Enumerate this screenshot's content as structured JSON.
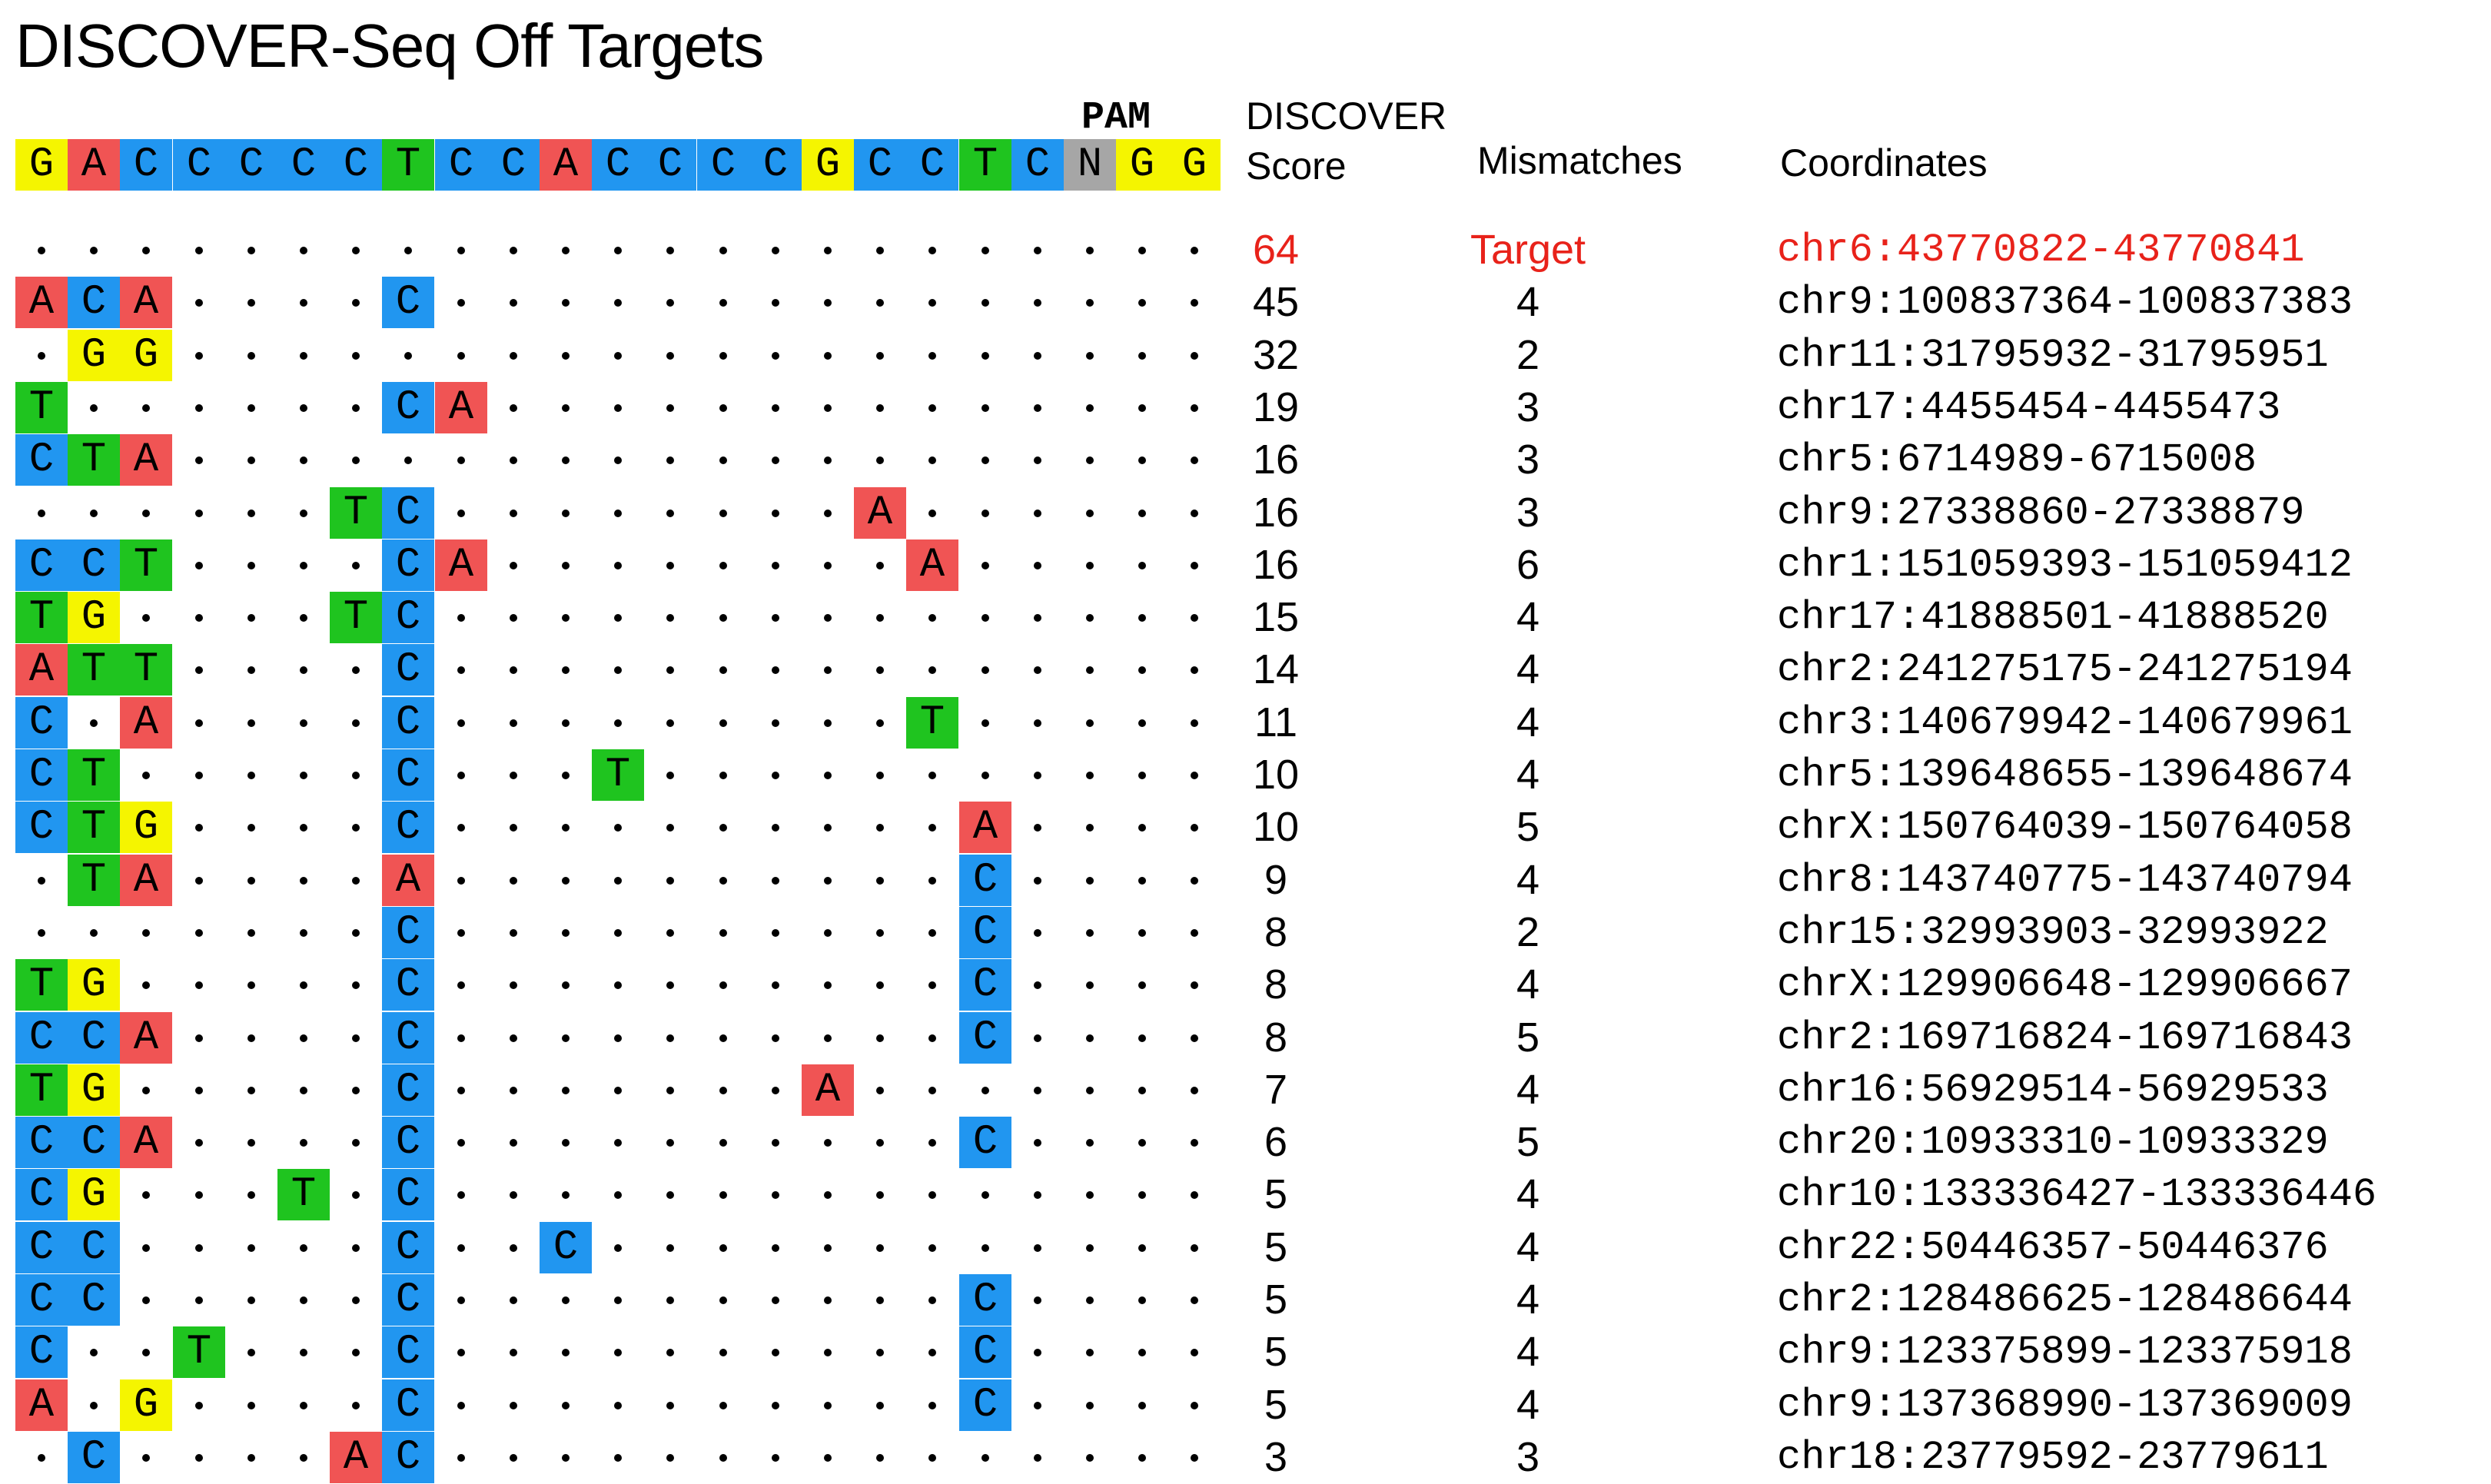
{
  "title": "DISCOVER-Seq Off Targets",
  "headers": {
    "pam": "PAM",
    "score_line1": "DISCOVER",
    "score_line2": "Score",
    "mismatches": "Mismatches",
    "coordinates": "Coordinates"
  },
  "colors": {
    "A": "#f05454",
    "C": "#2196f0",
    "G": "#f5f500",
    "T": "#1fc41f",
    "N": "#a6a6a6",
    "highlight": "#e8221a"
  },
  "reference": [
    "G",
    "A",
    "C",
    "C",
    "C",
    "C",
    "C",
    "T",
    "C",
    "C",
    "A",
    "C",
    "C",
    "C",
    "C",
    "G",
    "C",
    "C",
    "T",
    "C",
    "N",
    "G",
    "G"
  ],
  "rows": [
    {
      "seq": ".......................",
      "score": "64",
      "mismatches": "Target",
      "coords": "chr6:43770822-43770841",
      "highlight": true
    },
    {
      "seq": "ACA....C...............",
      "score": "45",
      "mismatches": "4",
      "coords": "chr9:100837364-100837383"
    },
    {
      "seq": ".GG....................",
      "score": "32",
      "mismatches": "2",
      "coords": "chr11:31795932-31795951"
    },
    {
      "seq": "T......CA..............",
      "score": "19",
      "mismatches": "3",
      "coords": "chr17:4455454-4455473"
    },
    {
      "seq": "CTA....................",
      "score": "16",
      "mismatches": "3",
      "coords": "chr5:6714989-6715008"
    },
    {
      "seq": "......TC........A......",
      "score": "16",
      "mismatches": "3",
      "coords": "chr9:27338860-27338879"
    },
    {
      "seq": "CCT....CA........A.....",
      "score": "16",
      "mismatches": "6",
      "coords": "chr1:151059393-151059412"
    },
    {
      "seq": "TG....TC...............",
      "score": "15",
      "mismatches": "4",
      "coords": "chr17:41888501-41888520"
    },
    {
      "seq": "ATT....C...............",
      "score": "14",
      "mismatches": "4",
      "coords": "chr2:241275175-241275194"
    },
    {
      "seq": "C.A....C.........T.....",
      "score": "11",
      "mismatches": "4",
      "coords": "chr3:140679942-140679961"
    },
    {
      "seq": "CT.....C...T...........",
      "score": "10",
      "mismatches": "4",
      "coords": "chr5:139648655-139648674"
    },
    {
      "seq": "CTG....C..........A....",
      "score": "10",
      "mismatches": "5",
      "coords": "chrX:150764039-150764058"
    },
    {
      "seq": ".TA....A..........C....",
      "score": "9",
      "mismatches": "4",
      "coords": "chr8:143740775-143740794"
    },
    {
      "seq": ".......C..........C....",
      "score": "8",
      "mismatches": "2",
      "coords": "chr15:32993903-32993922"
    },
    {
      "seq": "TG.....C..........C....",
      "score": "8",
      "mismatches": "4",
      "coords": "chrX:129906648-129906667"
    },
    {
      "seq": "CCA....C..........C....",
      "score": "8",
      "mismatches": "5",
      "coords": "chr2:169716824-169716843"
    },
    {
      "seq": "TG.....C.......A.......",
      "score": "7",
      "mismatches": "4",
      "coords": "chr16:56929514-56929533"
    },
    {
      "seq": "CCA....C..........C....",
      "score": "6",
      "mismatches": "5",
      "coords": "chr20:10933310-10933329"
    },
    {
      "seq": "CG...T.C...............",
      "score": "5",
      "mismatches": "4",
      "coords": "chr10:133336427-133336446"
    },
    {
      "seq": "CC.....C..C............",
      "score": "5",
      "mismatches": "4",
      "coords": "chr22:50446357-50446376"
    },
    {
      "seq": "CC.....C..........C....",
      "score": "5",
      "mismatches": "4",
      "coords": "chr2:128486625-128486644"
    },
    {
      "seq": "C..T...C..........C....",
      "score": "5",
      "mismatches": "4",
      "coords": "chr9:123375899-123375918"
    },
    {
      "seq": "A.G....C..........C....",
      "score": "5",
      "mismatches": "4",
      "coords": "chr9:137368990-137369009"
    },
    {
      "seq": ".C....AC...............",
      "score": "3",
      "mismatches": "3",
      "coords": "chr18:23779592-23779611"
    }
  ]
}
